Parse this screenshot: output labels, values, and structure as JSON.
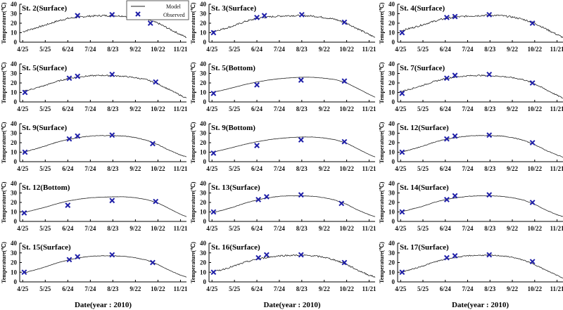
{
  "chart_data": {
    "type": "multi-panel line+scatter",
    "legend": {
      "model_label": "Model",
      "observed_label": "Observed",
      "placement": "top-left of panel 1 (straddling)"
    },
    "xlabel": "Date(year : 2010)",
    "ylabel": "Temperature(℃)",
    "x_tick_labels": [
      "4/25",
      "5/25",
      "6/24",
      "7/24",
      "8/23",
      "9/22",
      "10/22",
      "11/21"
    ],
    "x_tick_days": [
      0,
      30,
      60,
      90,
      120,
      150,
      180,
      210
    ],
    "xlim_days": [
      -4,
      218
    ],
    "ylim": [
      0,
      40
    ],
    "y_ticks": [
      0,
      10,
      20,
      30,
      40
    ],
    "colors": {
      "model": "#222222",
      "observed": "#1f1fa8",
      "axis": "#000000"
    },
    "panels": [
      {
        "title": "St. 2(Surface)",
        "noise": 1.8,
        "model": {
          "x": [
            0,
            15,
            30,
            45,
            60,
            75,
            90,
            105,
            120,
            135,
            150,
            165,
            180,
            195,
            210,
            218
          ],
          "y": [
            11,
            14.5,
            18,
            22,
            25,
            26.5,
            27.5,
            28,
            28,
            27.5,
            26,
            24,
            20,
            14,
            8,
            5
          ]
        },
        "observed": {
          "x": [
            73,
            119,
            170
          ],
          "y": [
            28,
            29,
            20
          ]
        }
      },
      {
        "title": "St. 3(Surface)",
        "noise": 1.8,
        "model": {
          "x": [
            0,
            15,
            30,
            45,
            60,
            75,
            90,
            105,
            120,
            135,
            150,
            165,
            180,
            195,
            210,
            218
          ],
          "y": [
            11,
            14,
            17.5,
            22,
            25,
            26.5,
            27.5,
            28,
            28,
            27.5,
            26,
            24,
            20,
            14,
            8,
            5
          ]
        },
        "observed": {
          "x": [
            2,
            60,
            70,
            120,
            177
          ],
          "y": [
            10,
            26,
            28,
            29,
            21
          ]
        }
      },
      {
        "title": "St. 4(Surface)",
        "noise": 1.8,
        "model": {
          "x": [
            0,
            15,
            30,
            45,
            60,
            75,
            90,
            105,
            120,
            135,
            150,
            165,
            180,
            195,
            210,
            218
          ],
          "y": [
            12,
            15,
            18.5,
            22,
            25,
            26.5,
            27.5,
            28,
            28.5,
            28,
            26.5,
            24,
            20,
            14,
            8,
            5
          ]
        },
        "observed": {
          "x": [
            2,
            62,
            73,
            119,
            177
          ],
          "y": [
            10,
            26,
            27,
            29,
            20
          ]
        }
      },
      {
        "title": "St. 5(Surface)",
        "noise": 1.3,
        "model": {
          "x": [
            0,
            15,
            30,
            45,
            60,
            75,
            90,
            105,
            120,
            135,
            150,
            165,
            180,
            195,
            210,
            218
          ],
          "y": [
            11,
            14,
            17.5,
            21.5,
            24.5,
            26.5,
            27.5,
            28,
            27.5,
            27,
            25.5,
            23.5,
            19,
            13,
            7,
            4
          ]
        },
        "observed": {
          "x": [
            3,
            62,
            73,
            119,
            177
          ],
          "y": [
            10,
            25,
            27,
            29,
            21
          ]
        }
      },
      {
        "title": "St. 5(Bottom)",
        "noise": 0.2,
        "model": {
          "x": [
            0,
            15,
            30,
            45,
            60,
            75,
            90,
            105,
            120,
            135,
            150,
            165,
            180,
            195,
            210,
            218
          ],
          "y": [
            10,
            12.5,
            15.5,
            18.5,
            21,
            23,
            24.5,
            25.5,
            26,
            26,
            25,
            23.5,
            20,
            14,
            8,
            5
          ]
        },
        "observed": {
          "x": [
            2,
            60,
            119,
            177
          ],
          "y": [
            9,
            18,
            23,
            22
          ]
        }
      },
      {
        "title": "St. 7(Surface)",
        "noise": 1.3,
        "model": {
          "x": [
            0,
            15,
            30,
            45,
            60,
            75,
            90,
            105,
            120,
            135,
            150,
            165,
            180,
            195,
            210,
            218
          ],
          "y": [
            11,
            14,
            17.5,
            21.5,
            24.5,
            26.5,
            27.5,
            28,
            27.5,
            27,
            25.5,
            23.5,
            19,
            13,
            7,
            4
          ]
        },
        "observed": {
          "x": [
            2,
            62,
            73,
            119,
            177
          ],
          "y": [
            9,
            25,
            28,
            29,
            20
          ]
        }
      },
      {
        "title": "St. 9(Surface)",
        "noise": 0.6,
        "model": {
          "x": [
            0,
            15,
            30,
            45,
            60,
            75,
            90,
            105,
            120,
            135,
            150,
            165,
            180,
            195,
            210,
            218
          ],
          "y": [
            10,
            13,
            16.5,
            20.5,
            23.5,
            25.5,
            27,
            27.5,
            27.5,
            27,
            25.5,
            22.5,
            18,
            12,
            7,
            5
          ]
        },
        "observed": {
          "x": [
            3,
            62,
            73,
            119,
            173
          ],
          "y": [
            10,
            24,
            27,
            28,
            19
          ]
        }
      },
      {
        "title": "St. 9(Bottom)",
        "noise": 0.2,
        "model": {
          "x": [
            0,
            15,
            30,
            45,
            60,
            75,
            90,
            105,
            120,
            135,
            150,
            165,
            180,
            195,
            210,
            218
          ],
          "y": [
            10,
            12.5,
            15.5,
            18.5,
            21,
            23,
            24.5,
            25.5,
            26,
            26,
            25,
            23,
            19.5,
            13.5,
            7.5,
            5
          ]
        },
        "observed": {
          "x": [
            2,
            60,
            119,
            177
          ],
          "y": [
            9,
            17,
            23,
            21
          ]
        }
      },
      {
        "title": "St. 12(Surface)",
        "noise": 0.6,
        "model": {
          "x": [
            0,
            15,
            30,
            45,
            60,
            75,
            90,
            105,
            120,
            135,
            150,
            165,
            180,
            195,
            210,
            218
          ],
          "y": [
            10,
            13,
            16.5,
            20.5,
            23.5,
            25.5,
            27,
            27.5,
            27.5,
            27,
            25.5,
            22.5,
            18,
            12,
            7,
            5
          ]
        },
        "observed": {
          "x": [
            2,
            62,
            73,
            119,
            177
          ],
          "y": [
            10,
            24,
            27,
            28,
            20
          ]
        }
      },
      {
        "title": "St. 12(Bottom)",
        "noise": 0.2,
        "model": {
          "x": [
            0,
            15,
            30,
            45,
            60,
            75,
            90,
            105,
            120,
            135,
            150,
            165,
            180,
            195,
            210,
            218
          ],
          "y": [
            9,
            12,
            15,
            18.5,
            21.5,
            23.5,
            25,
            25.5,
            26,
            26,
            25,
            23,
            19.5,
            13.5,
            7.5,
            5
          ]
        },
        "observed": {
          "x": [
            2,
            60,
            119,
            177
          ],
          "y": [
            9,
            17,
            22,
            21
          ]
        }
      },
      {
        "title": "St. 13(Surface)",
        "noise": 0.4,
        "model": {
          "x": [
            0,
            15,
            30,
            45,
            60,
            75,
            90,
            105,
            120,
            135,
            150,
            165,
            180,
            195,
            210,
            218
          ],
          "y": [
            9,
            12,
            15.5,
            19.5,
            22.5,
            25,
            26.5,
            27,
            27,
            26.5,
            25,
            22.5,
            18,
            12,
            7,
            5
          ]
        },
        "observed": {
          "x": [
            2,
            62,
            73,
            119,
            173
          ],
          "y": [
            10,
            23,
            26,
            28,
            19
          ]
        }
      },
      {
        "title": "St. 14(Surface)",
        "noise": 0.4,
        "model": {
          "x": [
            0,
            15,
            30,
            45,
            60,
            75,
            90,
            105,
            120,
            135,
            150,
            165,
            180,
            195,
            210,
            218
          ],
          "y": [
            10,
            13,
            16,
            20,
            23,
            25,
            26.5,
            27,
            27,
            26.5,
            25,
            22.5,
            18,
            12,
            7,
            5
          ]
        },
        "observed": {
          "x": [
            2,
            62,
            73,
            119,
            177
          ],
          "y": [
            10,
            23,
            27,
            28,
            20
          ]
        }
      },
      {
        "title": "St. 15(Surface)",
        "noise": 0.4,
        "model": {
          "x": [
            0,
            15,
            30,
            45,
            60,
            75,
            90,
            105,
            120,
            135,
            150,
            165,
            180,
            195,
            210,
            218
          ],
          "y": [
            9,
            12,
            15.5,
            19.5,
            22.5,
            25,
            26.5,
            27,
            27,
            26.5,
            25,
            22.5,
            18,
            12,
            7,
            5
          ]
        },
        "observed": {
          "x": [
            2,
            62,
            73,
            119,
            173
          ],
          "y": [
            10,
            23,
            26,
            28,
            20
          ]
        }
      },
      {
        "title": "St. 16(Surface)",
        "noise": 1.6,
        "model": {
          "x": [
            0,
            15,
            30,
            45,
            60,
            75,
            90,
            105,
            120,
            135,
            150,
            165,
            180,
            195,
            210,
            218
          ],
          "y": [
            10,
            13,
            16.5,
            20.5,
            23.5,
            25.5,
            27,
            27.5,
            27.5,
            27,
            25.5,
            22.5,
            18,
            12,
            7,
            5
          ]
        },
        "observed": {
          "x": [
            2,
            62,
            73,
            119,
            177
          ],
          "y": [
            10,
            25,
            28,
            28,
            20
          ]
        }
      },
      {
        "title": "St. 17(Surface)",
        "noise": 1.0,
        "model": {
          "x": [
            0,
            15,
            30,
            45,
            60,
            75,
            90,
            105,
            120,
            135,
            150,
            165,
            180,
            195,
            210,
            218
          ],
          "y": [
            10,
            13,
            16.5,
            20.5,
            23.5,
            25.5,
            27,
            27.5,
            27.5,
            27,
            25.5,
            22.5,
            18,
            12,
            7,
            4
          ]
        },
        "observed": {
          "x": [
            2,
            62,
            73,
            119,
            177
          ],
          "y": [
            10,
            25,
            27,
            28,
            21
          ]
        }
      }
    ]
  }
}
